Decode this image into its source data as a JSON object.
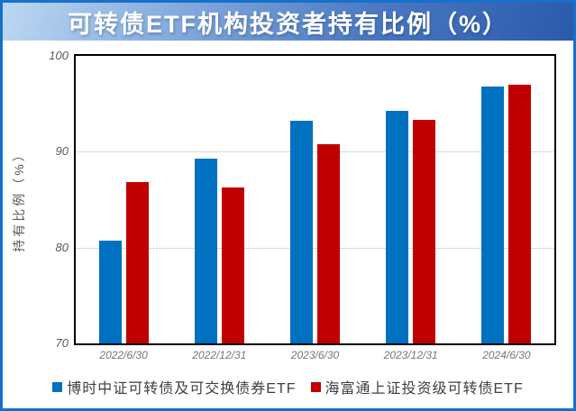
{
  "header": {
    "title": "可转债ETF机构投资者持有比例（%）"
  },
  "colors": {
    "frame_border": "#1770cc",
    "header_gradient_start": "#bcd7f1",
    "header_gradient_end": "#2b5aab",
    "series_blue": "#0070C0",
    "series_red": "#C00000",
    "gridline": "#d9d9d9",
    "plot_border": "#000000",
    "axis_text": "#595959"
  },
  "chart_data": {
    "type": "bar",
    "title": "可转债ETF机构投资者持有比例（%）",
    "categories": [
      "2022/6/30",
      "2022/12/31",
      "2023/6/30",
      "2023/12/31",
      "2024/6/30"
    ],
    "series": [
      {
        "name": "博时中证可转债及可交换债券ETF",
        "color": "#0070C0",
        "values": [
          80.7,
          89.3,
          93.2,
          94.3,
          96.8
        ]
      },
      {
        "name": "海富通上证投资级可转债ETF",
        "color": "#C00000",
        "values": [
          86.8,
          86.3,
          90.8,
          93.3,
          97.0
        ]
      }
    ],
    "xlabel": "",
    "ylabel": "持有比例（%）",
    "ylim": [
      70,
      100
    ],
    "yticks": [
      70,
      80,
      90,
      100
    ],
    "grid": true,
    "legend_position": "bottom"
  }
}
